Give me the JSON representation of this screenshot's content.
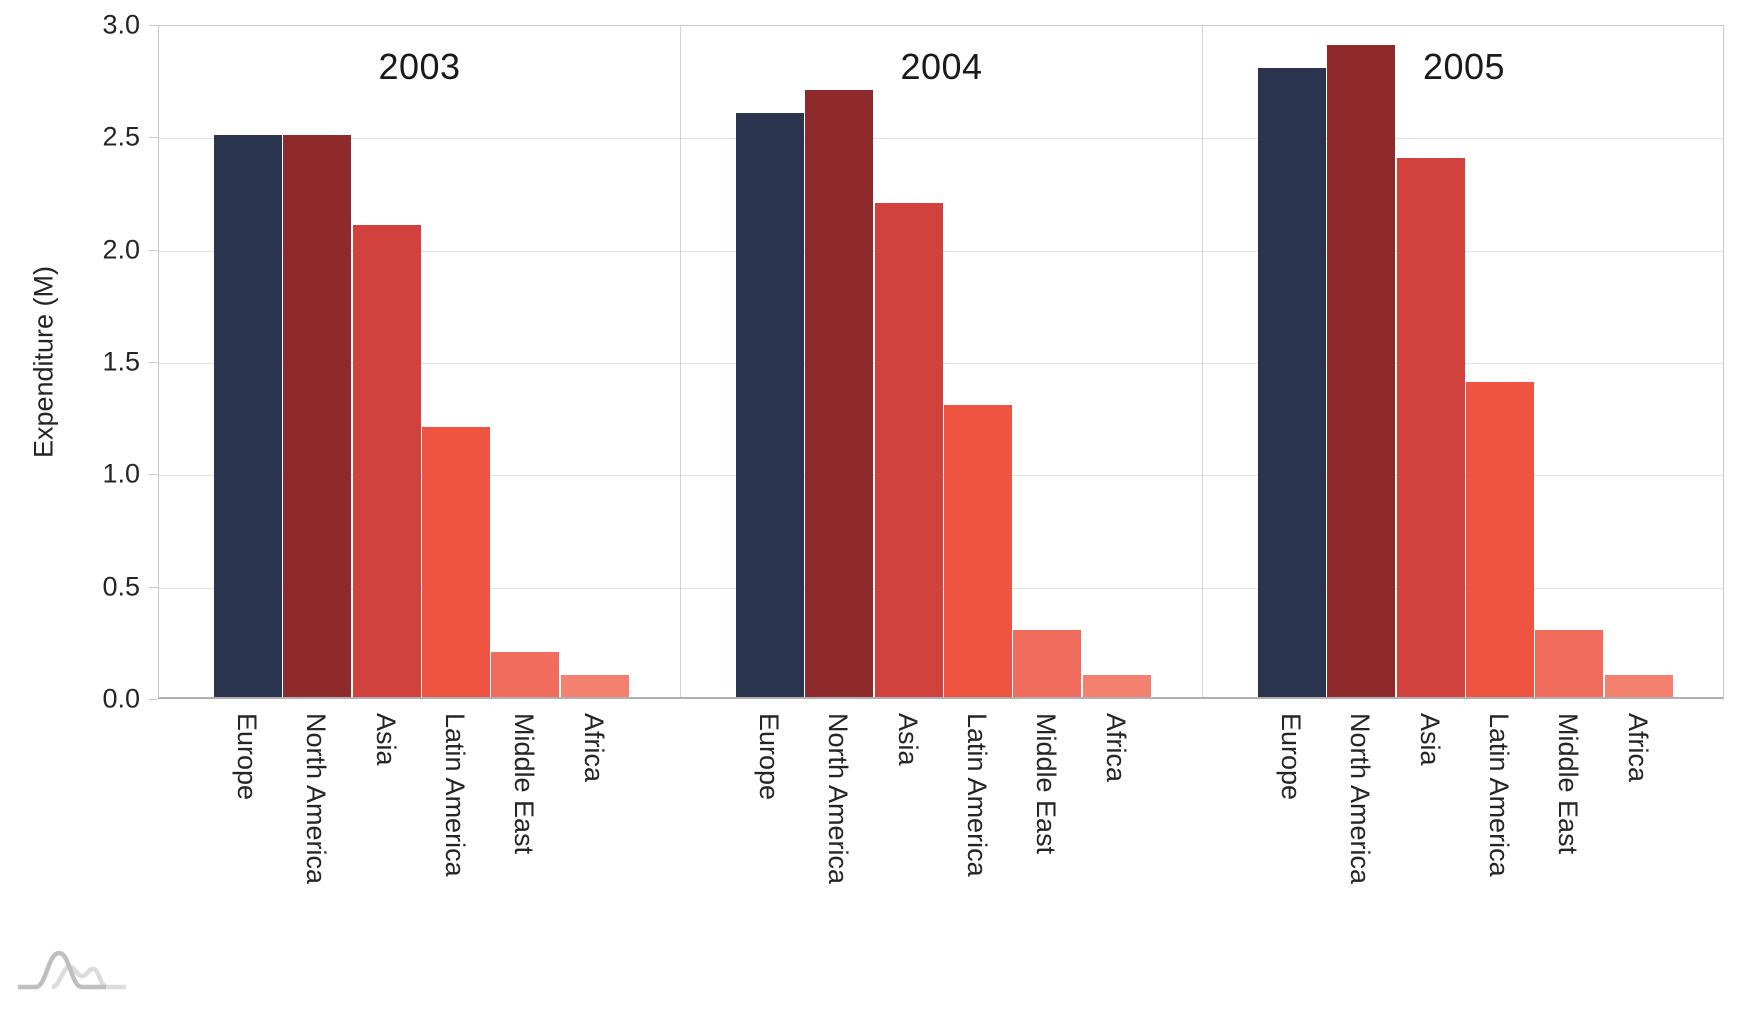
{
  "chart_data": {
    "type": "bar",
    "faceted": true,
    "facets": [
      "2003",
      "2004",
      "2005"
    ],
    "categories": [
      "Europe",
      "North America",
      "Asia",
      "Latin America",
      "Middle East",
      "Africa"
    ],
    "series": [
      {
        "name": "2003",
        "values": [
          2.5,
          2.5,
          2.1,
          1.2,
          0.2,
          0.1
        ]
      },
      {
        "name": "2004",
        "values": [
          2.6,
          2.7,
          2.2,
          1.3,
          0.3,
          0.1
        ]
      },
      {
        "name": "2005",
        "values": [
          2.8,
          2.9,
          2.4,
          1.4,
          0.3,
          0.1
        ]
      }
    ],
    "xlabel": "",
    "ylabel": "Expenditure (M)",
    "ylim": [
      0,
      3
    ],
    "yticks": [
      {
        "v": 0.0,
        "label": "0.0"
      },
      {
        "v": 0.5,
        "label": "0.5"
      },
      {
        "v": 1.0,
        "label": "1.0"
      },
      {
        "v": 1.5,
        "label": "1.5"
      },
      {
        "v": 2.0,
        "label": "2.0"
      },
      {
        "v": 2.5,
        "label": "2.5"
      },
      {
        "v": 3.0,
        "label": "3.0"
      }
    ],
    "grid": true,
    "legend_position": "none",
    "bar_colors": {
      "Europe": "#2a344f",
      "North America": "#8e2a2c",
      "Asia": "#d2423c",
      "Latin America": "#ef5342",
      "Middle East": "#f26c5d",
      "Africa": "#f4806f"
    },
    "style_colors": {
      "gridline": "#e2e2e2",
      "border": "#c9c9c9",
      "baseline": "#b0b0b0",
      "text": "#252525",
      "logo_dark": "#bfbfbf",
      "logo_light": "#dcdcdc"
    }
  },
  "axes": {
    "y_title": "Expenditure (M)"
  },
  "logo": {
    "name": "distribution-curves-logo"
  }
}
